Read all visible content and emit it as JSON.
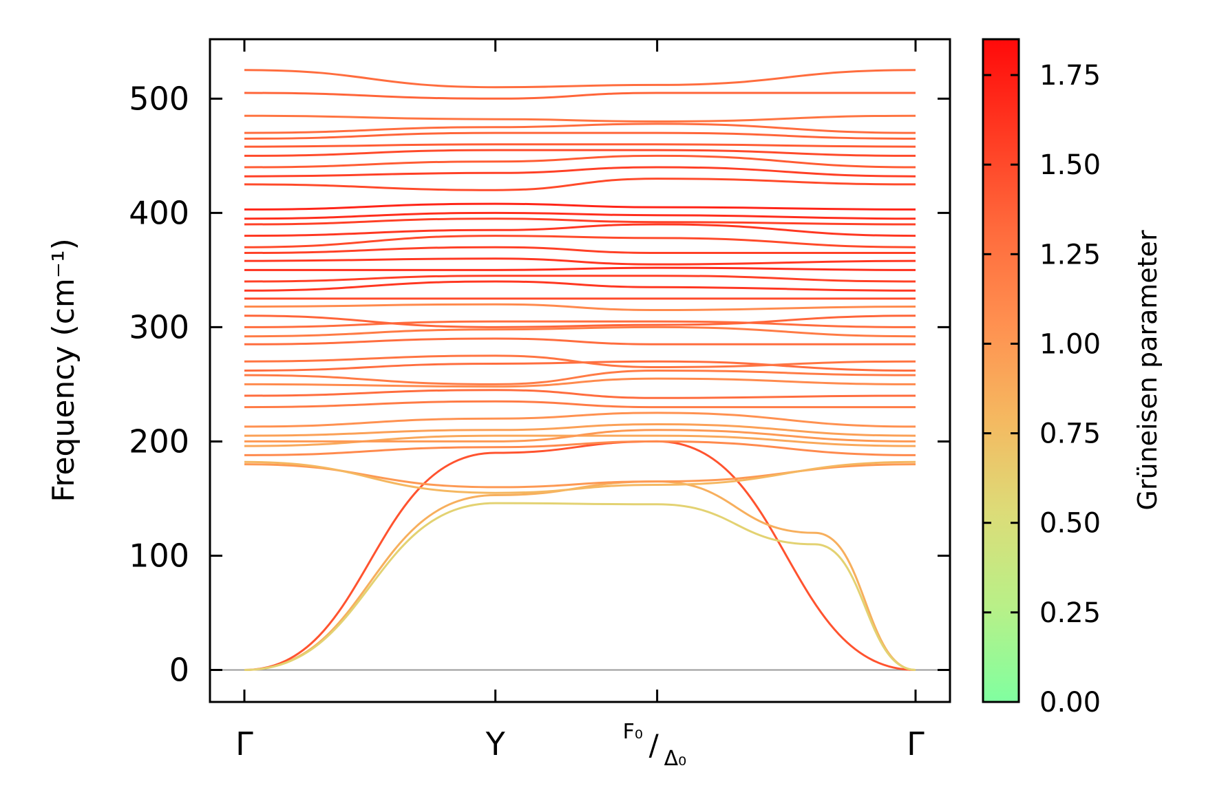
{
  "chart_data": {
    "type": "line",
    "subtype": "phonon-dispersion",
    "ylabel": "Frequency (cm⁻¹)",
    "ylim": [
      -28,
      552
    ],
    "yticks": [
      0,
      100,
      200,
      300,
      400,
      500
    ],
    "xticks": [
      {
        "label": "Γ",
        "pos": 0
      },
      {
        "label": "Y",
        "pos": 0.374
      },
      {
        "label": "F0/Δ0",
        "label_main": "F₀",
        "label_slash": "/",
        "label_sub": "Δ₀",
        "pos": 0.615
      },
      {
        "label": "Γ",
        "pos": 1
      }
    ],
    "zero_line": true,
    "colorbar": {
      "label": "Grüneisen parameter",
      "range": [
        0,
        1.85
      ],
      "ticks": [
        0.0,
        0.25,
        0.5,
        0.75,
        1.0,
        1.25,
        1.5,
        1.75
      ],
      "tick_labels": [
        "0.00",
        "0.25",
        "0.50",
        "0.75",
        "1.00",
        "1.25",
        "1.50",
        "1.75"
      ],
      "colors": [
        "#80FFA0",
        "#B8F088",
        "#DCDC78",
        "#F5B860",
        "#FF9050",
        "#FF6A3C",
        "#FF3A22",
        "#FF0A0A"
      ]
    },
    "series": [
      {
        "x": [
          0,
          0.374,
          0.615,
          1
        ],
        "y": [
          0,
          190,
          200,
          0
        ],
        "g": 1.45
      },
      {
        "x": [
          0,
          0.374,
          0.615,
          0.85,
          1
        ],
        "y": [
          0,
          153,
          165,
          120,
          0
        ],
        "g": 0.85
      },
      {
        "x": [
          0,
          0.374,
          0.615,
          0.85,
          1
        ],
        "y": [
          0,
          146,
          145,
          110,
          0
        ],
        "g": 0.6
      },
      {
        "x": [
          0,
          0.374,
          0.615,
          1
        ],
        "y": [
          180,
          160,
          165,
          180
        ],
        "g": 1.0
      },
      {
        "x": [
          0,
          0.374,
          0.615,
          1
        ],
        "y": [
          182,
          155,
          162,
          182
        ],
        "g": 0.8
      },
      {
        "x": [
          0,
          0.374,
          0.615,
          1
        ],
        "y": [
          188,
          195,
          200,
          188
        ],
        "g": 1.1
      },
      {
        "x": [
          0,
          0.374,
          0.615,
          1
        ],
        "y": [
          196,
          205,
          205,
          196
        ],
        "g": 0.9
      },
      {
        "x": [
          0,
          0.374,
          0.615,
          1
        ],
        "y": [
          200,
          200,
          210,
          200
        ],
        "g": 1.0
      },
      {
        "x": [
          0,
          0.374,
          0.615,
          1
        ],
        "y": [
          205,
          210,
          215,
          205
        ],
        "g": 0.95
      },
      {
        "x": [
          0,
          0.374,
          0.615,
          1
        ],
        "y": [
          213,
          220,
          225,
          213
        ],
        "g": 1.05
      },
      {
        "x": [
          0,
          0.374,
          0.615,
          1
        ],
        "y": [
          230,
          235,
          230,
          230
        ],
        "g": 1.2
      },
      {
        "x": [
          0,
          0.374,
          0.615,
          1
        ],
        "y": [
          240,
          245,
          238,
          240
        ],
        "g": 1.3
      },
      {
        "x": [
          0,
          0.374,
          0.615,
          1
        ],
        "y": [
          250,
          248,
          255,
          250
        ],
        "g": 1.1
      },
      {
        "x": [
          0,
          0.374,
          0.615,
          1
        ],
        "y": [
          258,
          250,
          262,
          258
        ],
        "g": 1.2
      },
      {
        "x": [
          0,
          0.374,
          0.615,
          1
        ],
        "y": [
          262,
          268,
          270,
          262
        ],
        "g": 1.3
      },
      {
        "x": [
          0,
          0.374,
          0.615,
          1
        ],
        "y": [
          270,
          275,
          265,
          270
        ],
        "g": 1.25
      },
      {
        "x": [
          0,
          0.374,
          0.615,
          1
        ],
        "y": [
          285,
          290,
          285,
          285
        ],
        "g": 1.3
      },
      {
        "x": [
          0,
          0.374,
          0.615,
          1
        ],
        "y": [
          292,
          298,
          300,
          292
        ],
        "g": 1.2
      },
      {
        "x": [
          0,
          0.374,
          0.615,
          1
        ],
        "y": [
          300,
          305,
          305,
          300
        ],
        "g": 1.3
      },
      {
        "x": [
          0,
          0.374,
          0.615,
          1
        ],
        "y": [
          310,
          300,
          302,
          310
        ],
        "g": 1.35
      },
      {
        "x": [
          0,
          0.374,
          0.615,
          1
        ],
        "y": [
          318,
          320,
          315,
          318
        ],
        "g": 1.1
      },
      {
        "x": [
          0,
          0.374,
          0.615,
          1
        ],
        "y": [
          325,
          325,
          325,
          325
        ],
        "g": 1.5
      },
      {
        "x": [
          0,
          0.374,
          0.615,
          1
        ],
        "y": [
          332,
          340,
          335,
          332
        ],
        "g": 1.6
      },
      {
        "x": [
          0,
          0.374,
          0.615,
          1
        ],
        "y": [
          340,
          345,
          345,
          340
        ],
        "g": 1.55
      },
      {
        "x": [
          0,
          0.374,
          0.615,
          1
        ],
        "y": [
          350,
          350,
          352,
          350
        ],
        "g": 1.65
      },
      {
        "x": [
          0,
          0.374,
          0.615,
          1
        ],
        "y": [
          358,
          360,
          355,
          358
        ],
        "g": 1.6
      },
      {
        "x": [
          0,
          0.374,
          0.615,
          1
        ],
        "y": [
          365,
          370,
          365,
          365
        ],
        "g": 1.55
      },
      {
        "x": [
          0,
          0.374,
          0.615,
          1
        ],
        "y": [
          370,
          380,
          378,
          370
        ],
        "g": 1.5
      },
      {
        "x": [
          0,
          0.374,
          0.615,
          1
        ],
        "y": [
          380,
          385,
          390,
          380
        ],
        "g": 1.6
      },
      {
        "x": [
          0,
          0.374,
          0.615,
          1
        ],
        "y": [
          390,
          395,
          392,
          390
        ],
        "g": 1.55
      },
      {
        "x": [
          0,
          0.374,
          0.615,
          1
        ],
        "y": [
          395,
          400,
          398,
          395
        ],
        "g": 1.65
      },
      {
        "x": [
          0,
          0.374,
          0.615,
          1
        ],
        "y": [
          403,
          408,
          405,
          403
        ],
        "g": 1.7
      },
      {
        "x": [
          0,
          0.374,
          0.615,
          1
        ],
        "y": [
          425,
          420,
          430,
          425
        ],
        "g": 1.5
      },
      {
        "x": [
          0,
          0.374,
          0.615,
          1
        ],
        "y": [
          432,
          435,
          440,
          432
        ],
        "g": 1.55
      },
      {
        "x": [
          0,
          0.374,
          0.615,
          1
        ],
        "y": [
          440,
          445,
          450,
          440
        ],
        "g": 1.4
      },
      {
        "x": [
          0,
          0.374,
          0.615,
          1
        ],
        "y": [
          450,
          455,
          455,
          450
        ],
        "g": 1.5
      },
      {
        "x": [
          0,
          0.374,
          0.615,
          1
        ],
        "y": [
          458,
          460,
          460,
          458
        ],
        "g": 1.4
      },
      {
        "x": [
          0,
          0.374,
          0.615,
          1
        ],
        "y": [
          465,
          470,
          470,
          465
        ],
        "g": 1.35
      },
      {
        "x": [
          0,
          0.374,
          0.615,
          1
        ],
        "y": [
          470,
          475,
          478,
          470
        ],
        "g": 1.3
      },
      {
        "x": [
          0,
          0.374,
          0.615,
          1
        ],
        "y": [
          485,
          482,
          480,
          485
        ],
        "g": 1.25
      },
      {
        "x": [
          0,
          0.374,
          0.615,
          1
        ],
        "y": [
          505,
          500,
          505,
          505
        ],
        "g": 1.35
      },
      {
        "x": [
          0,
          0.374,
          0.615,
          1
        ],
        "y": [
          525,
          510,
          512,
          525
        ],
        "g": 1.3
      }
    ]
  }
}
